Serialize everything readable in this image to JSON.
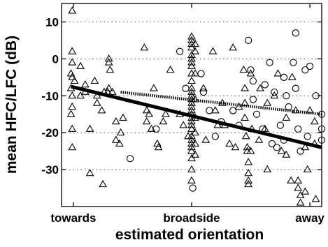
{
  "chart_data": {
    "type": "scatter",
    "title": "",
    "xlabel": "estimated orientation",
    "ylabel": "mean HFC/LFC (dB)",
    "xlim": [
      -0.1,
      2.1
    ],
    "ylim": [
      -40,
      15
    ],
    "x_ticks": [
      {
        "value": 0,
        "label": "towards"
      },
      {
        "value": 1,
        "label": "broadside"
      },
      {
        "value": 2,
        "label": "away"
      }
    ],
    "y_ticks": [
      {
        "value": 10,
        "label": "10"
      },
      {
        "value": 0,
        "label": "0"
      },
      {
        "value": -10,
        "label": "-10"
      },
      {
        "value": -20,
        "label": "-20"
      },
      {
        "value": -30,
        "label": "-30"
      }
    ],
    "grid": "horizontal dotted at y ticks",
    "series": [
      {
        "marker": "triangle",
        "points": [
          [
            -0.01,
            13
          ],
          [
            -0.01,
            2
          ],
          [
            -0.01,
            -1
          ],
          [
            -0.02,
            -4
          ],
          [
            -0.01,
            -5
          ],
          [
            -0.02,
            -8
          ],
          [
            -0.01,
            -10
          ],
          [
            -0.01,
            -13
          ],
          [
            -0.02,
            -15
          ],
          [
            -0.01,
            -19
          ],
          [
            -0.01,
            -24
          ],
          [
            0.01,
            -6
          ],
          [
            0.06,
            -2
          ],
          [
            0.06,
            -10
          ],
          [
            0.1,
            -7
          ],
          [
            0.1,
            -9
          ],
          [
            0.14,
            -19
          ],
          [
            0.18,
            -6
          ],
          [
            0.2,
            -10
          ],
          [
            0.2,
            -12
          ],
          [
            0.24,
            -14
          ],
          [
            0.26,
            -9
          ],
          [
            0.29,
            -9
          ],
          [
            0.3,
            -1
          ],
          [
            0.3,
            0
          ],
          [
            0.31,
            -3
          ],
          [
            0.3,
            -8
          ],
          [
            0.33,
            -9
          ],
          [
            0.36,
            -17
          ],
          [
            0.36,
            -22
          ],
          [
            0.39,
            -23
          ],
          [
            0.4,
            -20
          ],
          [
            0.42,
            -16
          ],
          [
            0.25,
            -34
          ],
          [
            0.14,
            -31
          ],
          [
            0.6,
            3
          ],
          [
            0.62,
            -14
          ],
          [
            0.62,
            -17
          ],
          [
            0.64,
            -15
          ],
          [
            0.66,
            -19
          ],
          [
            0.68,
            -8
          ],
          [
            0.71,
            -23
          ],
          [
            0.72,
            -24
          ],
          [
            0.76,
            -17
          ],
          [
            0.78,
            -15
          ],
          [
            0.82,
            -3
          ],
          [
            0.9,
            -15
          ],
          [
            0.93,
            -18
          ],
          [
            0.97,
            -21
          ],
          [
            1.0,
            6
          ],
          [
            1.0,
            5
          ],
          [
            1.0,
            4
          ],
          [
            1.0,
            3
          ],
          [
            1.0,
            1
          ],
          [
            1.0,
            0
          ],
          [
            1.0,
            -1
          ],
          [
            1.0,
            -2
          ],
          [
            1.0,
            -4
          ],
          [
            1.0,
            -6
          ],
          [
            1.0,
            -8
          ],
          [
            1.0,
            -9
          ],
          [
            1.0,
            -10
          ],
          [
            1.0,
            -11
          ],
          [
            1.0,
            -12
          ],
          [
            1.0,
            -13
          ],
          [
            1.0,
            -14
          ],
          [
            1.0,
            -15
          ],
          [
            1.0,
            -16
          ],
          [
            1.0,
            -17
          ],
          [
            1.0,
            -18
          ],
          [
            1.0,
            -19
          ],
          [
            1.0,
            -21
          ],
          [
            1.0,
            -22
          ],
          [
            1.0,
            -23
          ],
          [
            1.0,
            -24
          ],
          [
            1.0,
            -25
          ],
          [
            1.0,
            -27
          ],
          [
            1.0,
            -30
          ],
          [
            1.0,
            -33
          ],
          [
            1.03,
            4
          ],
          [
            1.03,
            2
          ],
          [
            1.03,
            -4
          ],
          [
            1.03,
            -11
          ],
          [
            1.03,
            -16
          ],
          [
            1.03,
            -20
          ],
          [
            1.03,
            -23
          ],
          [
            1.03,
            -26
          ],
          [
            1.1,
            -8
          ],
          [
            1.12,
            -22
          ],
          [
            1.18,
            2
          ],
          [
            1.2,
            -14
          ],
          [
            1.22,
            -18
          ],
          [
            1.26,
            -12
          ],
          [
            1.28,
            -18
          ],
          [
            1.32,
            -23
          ],
          [
            1.35,
            3
          ],
          [
            1.37,
            -24
          ],
          [
            1.4,
            -13
          ],
          [
            1.44,
            -3
          ],
          [
            1.45,
            -8
          ],
          [
            1.45,
            -12
          ],
          [
            1.45,
            -16
          ],
          [
            1.46,
            -21
          ],
          [
            1.47,
            -24
          ],
          [
            1.47,
            -25
          ],
          [
            1.48,
            -28
          ],
          [
            1.48,
            -31
          ],
          [
            1.48,
            -33
          ],
          [
            1.48,
            -34
          ],
          [
            1.5,
            -4
          ],
          [
            1.51,
            -19
          ],
          [
            1.5,
            -25
          ],
          [
            1.57,
            -22
          ],
          [
            1.58,
            -8
          ],
          [
            1.62,
            -19
          ],
          [
            1.64,
            -30
          ],
          [
            1.73,
            -4
          ],
          [
            1.76,
            -25
          ],
          [
            1.8,
            -16
          ],
          [
            1.8,
            -26
          ],
          [
            1.84,
            -33
          ],
          [
            1.85,
            -5
          ],
          [
            1.88,
            -14
          ],
          [
            1.9,
            -33
          ],
          [
            1.9,
            -35
          ],
          [
            1.92,
            -37
          ],
          [
            1.92,
            -39
          ],
          [
            1.96,
            -36
          ],
          [
            1.96,
            -24
          ],
          [
            1.98,
            -30
          ],
          [
            2.0,
            -14
          ],
          [
            2.04,
            -17
          ],
          [
            2.05,
            -38
          ],
          [
            2.04,
            -23
          ],
          [
            1.7,
            -10
          ],
          [
            1.64,
            -12
          ]
        ]
      },
      {
        "marker": "circle",
        "points": [
          [
            0.48,
            -27
          ],
          [
            0.7,
            -19
          ],
          [
            0.9,
            2
          ],
          [
            0.95,
            -8
          ],
          [
            1.01,
            -35
          ],
          [
            1.08,
            -4
          ],
          [
            1.1,
            -9
          ],
          [
            1.15,
            -14
          ],
          [
            1.2,
            -21
          ],
          [
            1.25,
            -17
          ],
          [
            1.35,
            -14
          ],
          [
            1.4,
            -18
          ],
          [
            1.48,
            5
          ],
          [
            1.5,
            -3
          ],
          [
            1.52,
            -6
          ],
          [
            1.52,
            -11
          ],
          [
            1.55,
            -15
          ],
          [
            1.6,
            -19
          ],
          [
            1.62,
            -7
          ],
          [
            1.66,
            -1
          ],
          [
            1.68,
            -23
          ],
          [
            1.7,
            -9
          ],
          [
            1.72,
            -24
          ],
          [
            1.75,
            -18
          ],
          [
            1.78,
            -22
          ],
          [
            1.78,
            -5
          ],
          [
            1.8,
            -10
          ],
          [
            1.82,
            -13
          ],
          [
            1.86,
            -1
          ],
          [
            1.88,
            7
          ],
          [
            1.88,
            -8
          ],
          [
            1.9,
            -19
          ],
          [
            1.92,
            -25
          ],
          [
            1.96,
            -3
          ],
          [
            1.98,
            -21
          ],
          [
            2.0,
            -2
          ],
          [
            2.05,
            -10
          ],
          [
            2.1,
            -15
          ],
          [
            2.1,
            -19
          ],
          [
            2.1,
            -22
          ]
        ]
      }
    ],
    "regression_lines": [
      {
        "style": "solid",
        "x": [
          -0.02,
          2.1
        ],
        "y": [
          -7.5,
          -24
        ]
      },
      {
        "style": "dotted",
        "x": [
          0.4,
          2.1
        ],
        "y": [
          -9,
          -15
        ]
      }
    ]
  }
}
